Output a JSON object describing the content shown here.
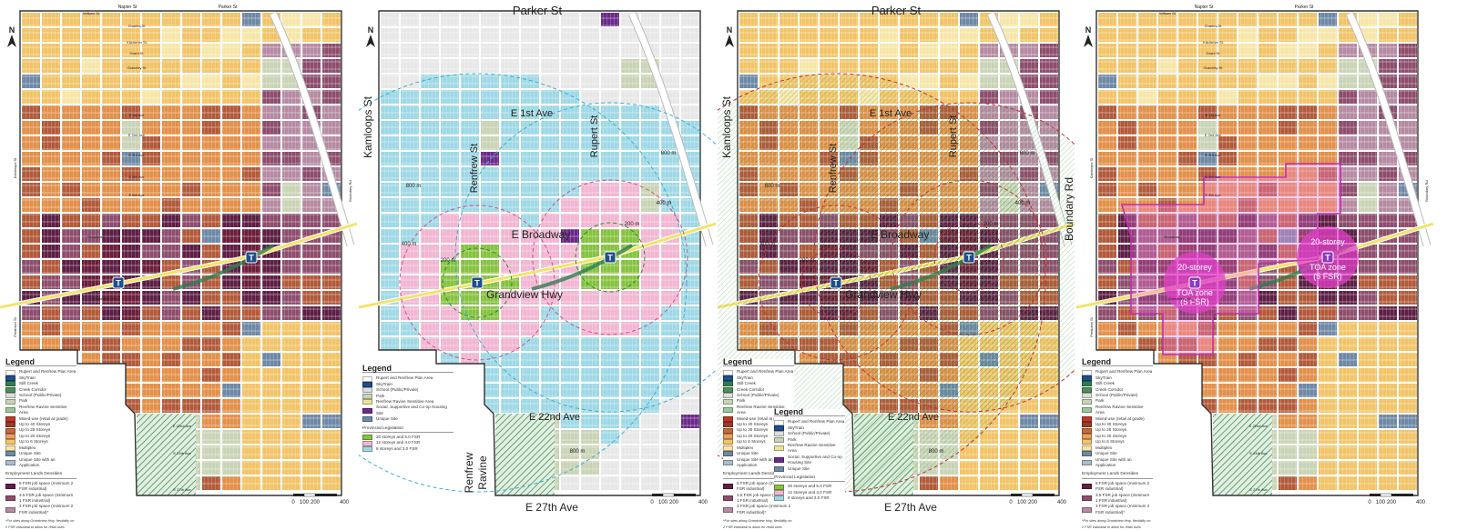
{
  "colors": {
    "up_to_40": "#6b1e3a",
    "up_to_25": "#b35a3a",
    "up_to_20": "#e3904a",
    "up_to_6": "#f2c468",
    "multiplex": "#f7e6a8",
    "unique_site": "#6e88a6",
    "unique_app": "#a9bcd0",
    "park": "#c9d4b6",
    "job_5": "#5e1f45",
    "job_35": "#8e4d6c",
    "job_3": "#b58aa2",
    "skytrain": "#f3e36b",
    "prov_20": "#86c340",
    "prov_12": "#f2b6d2",
    "prov_8": "#9fd8e6",
    "social": "#6a2a8a",
    "toa": "#e040c8",
    "creek": "#2f7d4f",
    "mixed_use": "#c0392b"
  },
  "north_label": "N",
  "scale_bar": [
    "0",
    "100",
    "200",
    "400"
  ],
  "streets_small": {
    "top": [
      "Napier St",
      "Parker St",
      "William St",
      "Charles St",
      "Kitchener St",
      "Grant St",
      "Graveley St",
      "E 1st Ave",
      "E 2nd Ave",
      "E 3rd Ave",
      "E 5th Ave",
      "E 6th Ave",
      "Broadway",
      "Grandview Hwy",
      "E 22nd Ave",
      "E 24th Ave",
      "E 27th Ave"
    ],
    "kamloops": "Kamloops St",
    "boundary": "Boundary Rd",
    "penticton": "Penticton St"
  },
  "streets_large": {
    "parker": "Parker St",
    "kamloops": "Kamloops St",
    "e1st": "E 1st Ave",
    "renfrew": "Renfrew St",
    "rupert": "Rupert St",
    "broadway": "E Broadway",
    "grandview": "Grandview Hwy",
    "e22": "E 22nd Ave",
    "e27": "E 27th Ave",
    "ravine1": "Renfrew",
    "ravine2": "Ravine",
    "boundary": "Boundary Rd"
  },
  "radius_labels": [
    "800 m",
    "400 m",
    "200 m"
  ],
  "toa_labels": [
    {
      "line1": "20-storey",
      "line2": "TOA zone",
      "line3": "(5 FSR)"
    },
    {
      "line1": "20-storey",
      "line2": "TOA zone",
      "line3": "(5 FSR)"
    }
  ],
  "skytrain_glyph": "T",
  "plan_legend": {
    "title": "Legend",
    "items": [
      {
        "label": "Rupert and Renfrew Plan Area",
        "color": "#ffffff"
      },
      {
        "label": "SkyTrain",
        "color": "#1f4e8c"
      },
      {
        "label": "Still Creek",
        "color": "#2f7d4f"
      },
      {
        "label": "Creek Corridor",
        "color": "#4f8f5a"
      },
      {
        "label": "School (Public/Private)",
        "color": "#dddddd"
      },
      {
        "label": "Park",
        "color": "#c9d4b6"
      },
      {
        "label": "Renfrew Ravine Sensitive Area",
        "color": "#9cc79a"
      },
      {
        "label": "Mixed-use (retail at grade)",
        "color": "#c0392b"
      },
      {
        "label": "Up to 40 Storeys",
        "color": "#9c3b2a"
      },
      {
        "label": "Up to 25 Storeys",
        "color": "#c7693a"
      },
      {
        "label": "Up to 20 Storeys",
        "color": "#e9a060"
      },
      {
        "label": "Up to 6 Storeys",
        "color": "#f2c468"
      },
      {
        "label": "Multiplex",
        "color": "#f7e6a8"
      },
      {
        "label": "Unique Site",
        "color": "#6e88a6"
      },
      {
        "label": "Unique Site with an Application",
        "color": "#a9bcd0"
      }
    ],
    "employment_title": "Employment Lands Densities",
    "employment": [
      {
        "label": "5 FSR job space (minimum 2 FSR industrial)",
        "color": "#5e1f45"
      },
      {
        "label": "3.5 FSR job space (minimum 1 FSR industrial)",
        "color": "#8e4d6c"
      },
      {
        "label": "3 FSR job space (minimum 2 FSR industrial)*",
        "color": "#b58aa2"
      }
    ],
    "footnote": "*For sites along Grandview Hwy, flexibility on 2 FSR industrial to allow for retail uses"
  },
  "prov_legend": {
    "title": "Legend",
    "items": [
      {
        "label": "Rupert and Renfrew Plan Area",
        "color": "#ffffff"
      },
      {
        "label": "SkyTrain",
        "color": "#1f4e8c"
      },
      {
        "label": "School (Public/Private)",
        "color": "#dddddd"
      },
      {
        "label": "Park",
        "color": "#c9d4b6"
      },
      {
        "label": "Renfrew Ravine Sensitive Area",
        "color": "#e8e39a"
      },
      {
        "label": "Social, Supportive and Co-op Housing Site",
        "color": "#6a2a8a"
      },
      {
        "label": "Unique Site",
        "color": "#6e88a6"
      }
    ],
    "provincial_title": "Provincial Legislation",
    "provincial": [
      {
        "label": "20 storeys and 5.0 FSR",
        "color": "#86c340"
      },
      {
        "label": "12 storeys and 4.0 FSR",
        "color": "#f2b6d2"
      },
      {
        "label": "8 storeys and 3.0 FSR",
        "color": "#9fd8e6"
      }
    ]
  }
}
